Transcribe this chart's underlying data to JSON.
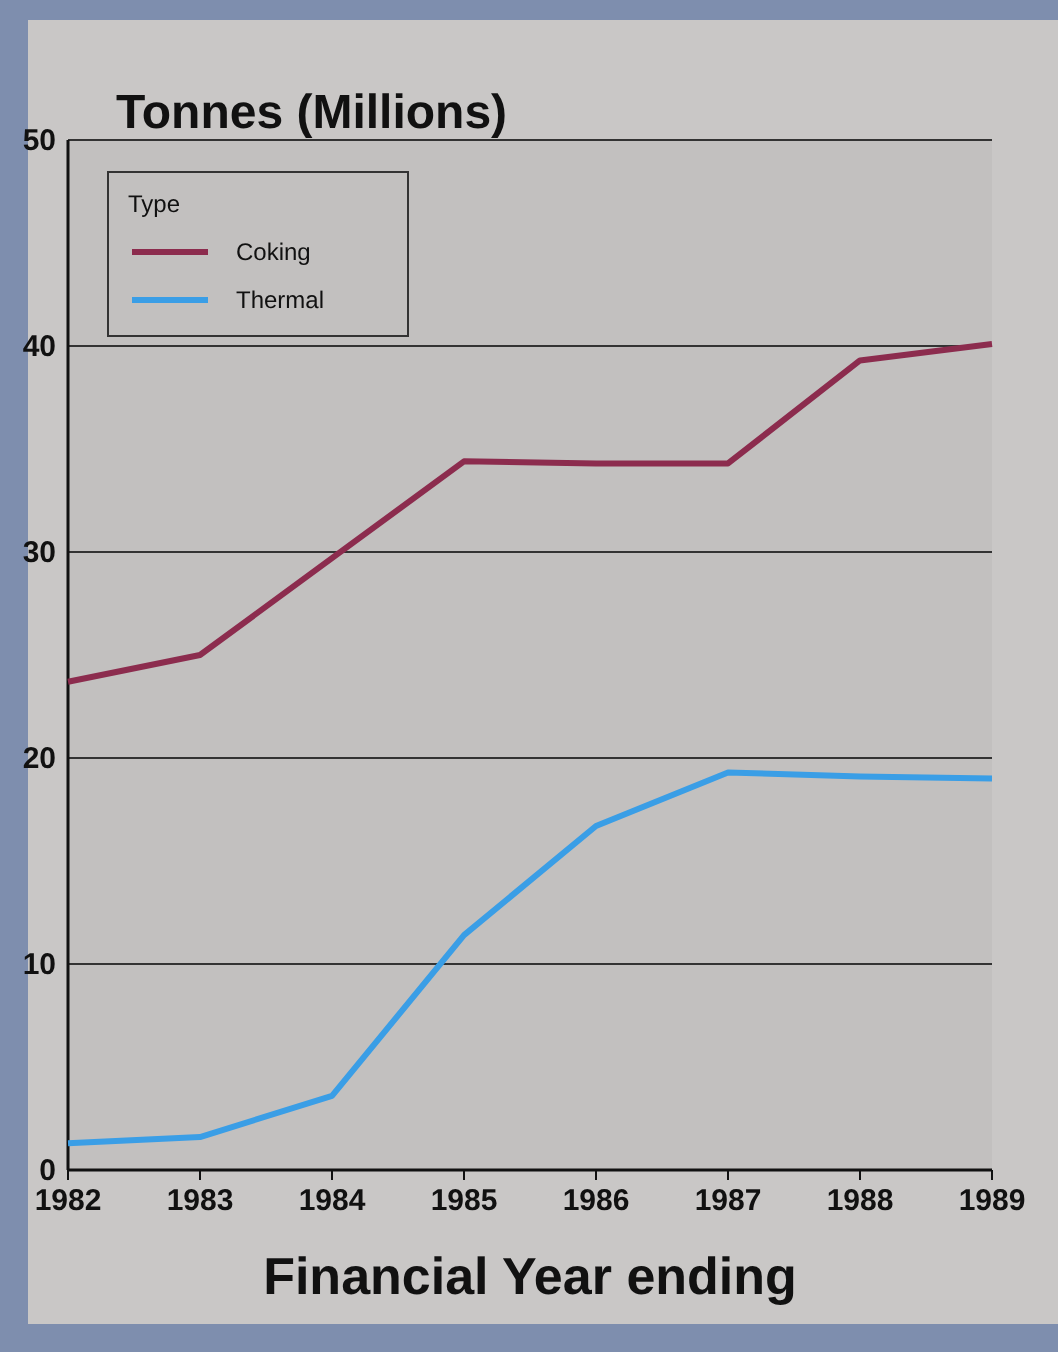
{
  "chart_data": {
    "type": "line",
    "title": "Tonnes (Millions)",
    "xlabel": "Financial Year ending",
    "legend_title": "Type",
    "legend": "top left",
    "grid": "y",
    "x": [
      1982,
      1983,
      1984,
      1985,
      1986,
      1987,
      1988,
      1989
    ],
    "xlim": [
      1982,
      1989
    ],
    "xticks": [
      1982,
      1983,
      1984,
      1985,
      1986,
      1987,
      1988,
      1989
    ],
    "ylim": [
      0,
      50
    ],
    "yticks": [
      0,
      10,
      20,
      30,
      40,
      50
    ],
    "series": [
      {
        "name": "Coking",
        "color": "#8c2c4e",
        "values": [
          23.7,
          25.0,
          29.7,
          34.4,
          34.3,
          34.3,
          39.3,
          40.1
        ]
      },
      {
        "name": "Thermal",
        "color": "#3a9ee6",
        "values": [
          1.3,
          1.6,
          3.6,
          11.4,
          16.7,
          19.3,
          19.1,
          19.0
        ]
      }
    ]
  }
}
